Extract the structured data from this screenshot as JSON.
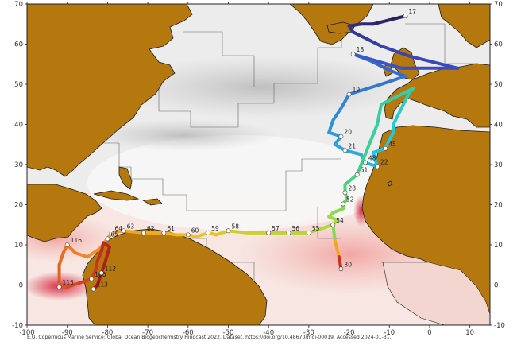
{
  "map": {
    "lon_range": [
      -100,
      15
    ],
    "lat_range": [
      -10,
      70
    ],
    "lon_ticks": [
      -100,
      -90,
      -80,
      -70,
      -60,
      -50,
      -40,
      -30,
      -20,
      -10,
      0,
      10
    ],
    "lat_ticks": [
      -10,
      0,
      10,
      20,
      30,
      40,
      50,
      60,
      70
    ],
    "colors": {
      "land": "#b5780f",
      "ocean_low": "#e2e2e2",
      "ocean_high": "#d7263d",
      "waypoint_fill": "#ffffff"
    }
  },
  "route_colors": [
    "#2b1f5e",
    "#3b4cc0",
    "#2f8fd8",
    "#22c7e0",
    "#3ecf8e",
    "#a6dc3a",
    "#f2c21e",
    "#f28a2a",
    "#d2401e",
    "#a3151e"
  ],
  "route": [
    {
      "lon": -6,
      "lat": 67,
      "label": "17"
    },
    {
      "lon": -10,
      "lat": 66
    },
    {
      "lon": -14,
      "lat": 65
    },
    {
      "lon": -17,
      "lat": 65
    },
    {
      "lon": -20,
      "lat": 64.5
    },
    {
      "lon": -19,
      "lat": 63
    },
    {
      "lon": -15,
      "lat": 61
    },
    {
      "lon": -12,
      "lat": 59.5
    },
    {
      "lon": -5,
      "lat": 57
    },
    {
      "lon": 7,
      "lat": 54
    },
    {
      "lon": -7,
      "lat": 54
    },
    {
      "lon": -19,
      "lat": 57.5,
      "label": "18"
    },
    {
      "lon": -15,
      "lat": 56
    },
    {
      "lon": -10,
      "lat": 53.5
    },
    {
      "lon": -6,
      "lat": 52
    },
    {
      "lon": -12,
      "lat": 50
    },
    {
      "lon": -20,
      "lat": 47.5,
      "label": "19"
    },
    {
      "lon": -22,
      "lat": 44
    },
    {
      "lon": -24,
      "lat": 41
    },
    {
      "lon": -25,
      "lat": 38
    },
    {
      "lon": -22,
      "lat": 37,
      "label": "20"
    },
    {
      "lon": -23.5,
      "lat": 35
    },
    {
      "lon": -21,
      "lat": 33.5,
      "label": "21"
    },
    {
      "lon": -17,
      "lat": 32.5
    },
    {
      "lon": -16,
      "lat": 30.5,
      "label": "48"
    },
    {
      "lon": -13,
      "lat": 29.5,
      "label": "22"
    },
    {
      "lon": -14,
      "lat": 33
    },
    {
      "lon": -11,
      "lat": 34,
      "label": "45"
    },
    {
      "lon": -9,
      "lat": 38
    },
    {
      "lon": -9,
      "lat": 40
    },
    {
      "lon": -7,
      "lat": 44
    },
    {
      "lon": -5,
      "lat": 48
    },
    {
      "lon": -4,
      "lat": 49
    },
    {
      "lon": -12,
      "lat": 45
    },
    {
      "lon": -13,
      "lat": 40
    },
    {
      "lon": -15,
      "lat": 35
    },
    {
      "lon": -18,
      "lat": 27.5,
      "label": "51"
    },
    {
      "lon": -21,
      "lat": 25
    },
    {
      "lon": -21,
      "lat": 23,
      "label": "28"
    },
    {
      "lon": -20.5,
      "lat": 21.5
    },
    {
      "lon": -21.5,
      "lat": 20.2,
      "label": "52"
    },
    {
      "lon": -21.5,
      "lat": 19
    },
    {
      "lon": -24,
      "lat": 18
    },
    {
      "lon": -25,
      "lat": 17
    },
    {
      "lon": -23,
      "lat": 16.2
    },
    {
      "lon": -24,
      "lat": 15,
      "label": "54"
    },
    {
      "lon": -30,
      "lat": 13,
      "label": "55"
    },
    {
      "lon": -35,
      "lat": 13,
      "label": "56"
    },
    {
      "lon": -40,
      "lat": 13,
      "label": "57"
    },
    {
      "lon": -45,
      "lat": 13
    },
    {
      "lon": -50,
      "lat": 13.5,
      "label": "58"
    },
    {
      "lon": -53,
      "lat": 12.5
    },
    {
      "lon": -55,
      "lat": 13,
      "label": "59"
    },
    {
      "lon": -58,
      "lat": 12
    },
    {
      "lon": -60,
      "lat": 12.5,
      "label": "60"
    },
    {
      "lon": -63,
      "lat": 12.5
    },
    {
      "lon": -66,
      "lat": 13,
      "label": "61"
    },
    {
      "lon": -71,
      "lat": 13,
      "label": "62"
    },
    {
      "lon": -76,
      "lat": 13.5,
      "label": "63"
    },
    {
      "lon": -79,
      "lat": 13,
      "label": "64"
    },
    {
      "lon": -80,
      "lat": 11.5,
      "label": "65"
    },
    {
      "lon": -82,
      "lat": 9
    },
    {
      "lon": -85,
      "lat": 7
    },
    {
      "lon": -88,
      "lat": 8
    },
    {
      "lon": -90,
      "lat": 10,
      "label": "116"
    },
    {
      "lon": -91,
      "lat": 8
    },
    {
      "lon": -92,
      "lat": 5
    },
    {
      "lon": -92,
      "lat": 1
    },
    {
      "lon": -92,
      "lat": -0.5,
      "label": "115"
    },
    {
      "lon": -90,
      "lat": -0.5
    },
    {
      "lon": -87,
      "lat": 0.5
    },
    {
      "lon": -84,
      "lat": 1.5,
      "label": "106"
    },
    {
      "lon": -83,
      "lat": 3.5
    },
    {
      "lon": -82.5,
      "lat": 6
    },
    {
      "lon": -81.5,
      "lat": 8.5
    },
    {
      "lon": -81,
      "lat": 10.5
    },
    {
      "lon": -79.5,
      "lat": 9.5
    },
    {
      "lon": -80.5,
      "lat": 6
    },
    {
      "lon": -81.5,
      "lat": 3,
      "label": "112"
    },
    {
      "lon": -82.5,
      "lat": 0
    },
    {
      "lon": -83.5,
      "lat": -1,
      "label": "113"
    }
  ],
  "spur": [
    {
      "lon": -24,
      "lat": 15
    },
    {
      "lon": -23.5,
      "lat": 11
    },
    {
      "lon": -22.5,
      "lat": 7
    },
    {
      "lon": -22,
      "lat": 4,
      "label": "30"
    }
  ],
  "footer": {
    "attribution": "E.U. Copernicus Marine Service: Global Ocean Biogeochemistry Hindcast 2022. Dataset. https://doi.org/10.48670/moi-00019. Accessed 2024-01-31."
  }
}
